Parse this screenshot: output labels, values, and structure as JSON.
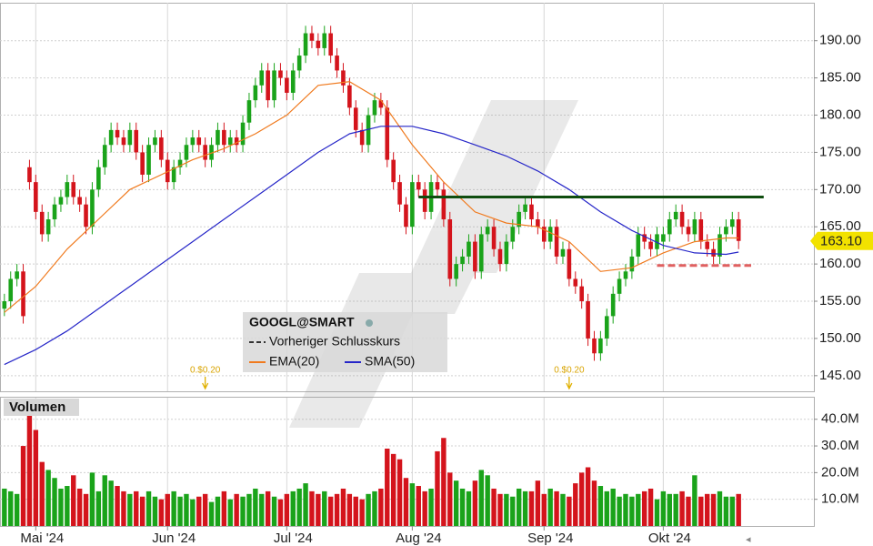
{
  "chart_data": {
    "type": "candlestick",
    "title": "GOOGL@SMART",
    "up_color": "#1aa31a",
    "down_color": "#d4141c",
    "open": [
      154,
      155,
      158,
      159,
      173,
      171,
      167,
      164,
      166,
      168,
      169,
      171,
      169,
      168,
      165,
      170,
      173,
      176,
      178,
      177,
      176,
      178,
      175,
      172,
      176,
      177,
      174,
      171,
      173,
      174,
      176,
      177,
      176,
      174,
      176,
      178,
      176,
      177,
      176,
      179,
      182,
      184,
      186,
      182,
      186,
      185,
      183,
      186,
      188,
      191,
      190,
      189,
      191,
      188,
      186,
      184,
      181,
      178,
      176,
      180,
      182,
      181,
      174,
      171,
      168,
      165,
      171,
      170,
      167,
      171,
      170,
      166,
      158,
      160,
      161,
      163,
      159,
      164,
      165,
      162,
      160,
      163,
      165,
      167,
      168,
      166,
      165,
      163,
      165,
      161,
      162,
      158,
      157,
      155,
      150,
      148,
      150,
      153,
      156,
      158,
      159,
      161,
      164,
      163,
      162,
      163,
      164,
      166,
      167,
      165,
      164,
      166,
      163,
      162,
      161,
      164,
      165,
      166
    ],
    "high": [
      156,
      159,
      160,
      160,
      174,
      172,
      168,
      167,
      169,
      170,
      172,
      172,
      170,
      169,
      171,
      174,
      177,
      179,
      179,
      178,
      179,
      179,
      176,
      177,
      178,
      178,
      175,
      174,
      175,
      177,
      178,
      178,
      177,
      177,
      179,
      179,
      178,
      178,
      180,
      183,
      185,
      187,
      187,
      187,
      187,
      186,
      187,
      189,
      192,
      192,
      191,
      192,
      192,
      189,
      187,
      185,
      182,
      179,
      181,
      183,
      183,
      182,
      175,
      172,
      169,
      172,
      172,
      171,
      172,
      172,
      171,
      167,
      161,
      162,
      164,
      164,
      165,
      166,
      166,
      163,
      164,
      166,
      168,
      169,
      169,
      167,
      166,
      166,
      166,
      163,
      163,
      159,
      158,
      156,
      151,
      151,
      154,
      157,
      159,
      160,
      162,
      165,
      165,
      164,
      165,
      165,
      167,
      168,
      168,
      166,
      167,
      167,
      164,
      163,
      165,
      166,
      167,
      167
    ],
    "low": [
      153,
      154,
      157,
      152,
      170,
      166,
      163,
      163,
      165,
      167,
      168,
      168,
      167,
      164,
      164,
      169,
      172,
      175,
      176,
      175,
      175,
      174,
      171,
      171,
      175,
      173,
      170,
      170,
      172,
      173,
      175,
      175,
      173,
      173,
      175,
      175,
      175,
      175,
      175,
      178,
      181,
      183,
      181,
      181,
      184,
      182,
      182,
      185,
      187,
      189,
      188,
      188,
      187,
      185,
      183,
      180,
      177,
      175,
      175,
      179,
      180,
      173,
      170,
      167,
      164,
      164,
      169,
      166,
      166,
      169,
      165,
      157,
      157,
      159,
      160,
      158,
      158,
      163,
      161,
      159,
      159,
      162,
      164,
      166,
      165,
      164,
      162,
      162,
      160,
      160,
      157,
      156,
      154,
      149,
      147,
      147,
      149,
      152,
      155,
      157,
      158,
      160,
      162,
      161,
      161,
      162,
      163,
      165,
      164,
      163,
      163,
      162,
      161,
      160,
      160,
      163,
      164,
      162
    ],
    "close": [
      155,
      158,
      159,
      153,
      171,
      167,
      164,
      166,
      168,
      169,
      171,
      169,
      168,
      165,
      170,
      173,
      176,
      178,
      177,
      176,
      178,
      175,
      172,
      176,
      177,
      174,
      171,
      173,
      174,
      176,
      177,
      176,
      174,
      176,
      178,
      176,
      177,
      176,
      179,
      182,
      184,
      186,
      182,
      186,
      185,
      183,
      186,
      188,
      191,
      190,
      189,
      191,
      188,
      186,
      184,
      181,
      178,
      176,
      180,
      182,
      181,
      174,
      171,
      168,
      165,
      171,
      170,
      167,
      171,
      170,
      166,
      158,
      160,
      161,
      163,
      159,
      164,
      165,
      162,
      160,
      163,
      165,
      167,
      168,
      166,
      165,
      163,
      165,
      161,
      162,
      158,
      157,
      155,
      150,
      148,
      150,
      153,
      156,
      158,
      159,
      161,
      164,
      163,
      162,
      164,
      164,
      166,
      167,
      165,
      164,
      166,
      163,
      162,
      161,
      164,
      165,
      166,
      163.1
    ],
    "ylim": [
      142.9,
      195.1
    ],
    "yticks": [
      {
        "value": 145,
        "label": "145.00"
      },
      {
        "value": 150,
        "label": "150.00"
      },
      {
        "value": 155,
        "label": "155.00"
      },
      {
        "value": 160,
        "label": "160.00"
      },
      {
        "value": 165,
        "label": "165.00"
      },
      {
        "value": 170,
        "label": "170.00"
      },
      {
        "value": 175,
        "label": "175.00"
      },
      {
        "value": 180,
        "label": "180.00"
      },
      {
        "value": 185,
        "label": "185.00"
      },
      {
        "value": 190,
        "label": "190.00"
      }
    ],
    "xlim": [
      -0.7,
      129
    ],
    "xticks": [
      {
        "value": 5,
        "label": "Mai '24"
      },
      {
        "value": 26,
        "label": "Jun '24"
      },
      {
        "value": 45,
        "label": "Jul '24"
      },
      {
        "value": 65,
        "label": "Aug '24"
      },
      {
        "value": 86,
        "label": "Sep '24"
      },
      {
        "value": 105,
        "label": "Okt '24"
      }
    ],
    "series": [
      {
        "name": "EMA(20)",
        "color": "#f07a1e",
        "x": [
          0,
          5,
          10,
          15,
          20,
          25,
          30,
          35,
          40,
          45,
          50,
          55,
          60,
          65,
          70,
          75,
          80,
          85,
          90,
          95,
          100,
          105,
          110,
          115,
          117
        ],
        "values": [
          153.5,
          157,
          162,
          166,
          170,
          172,
          174,
          175.5,
          177.5,
          180,
          184,
          184.5,
          182,
          176,
          171,
          167,
          165.5,
          165,
          163,
          159,
          159.5,
          161.5,
          163,
          163.5,
          163.5
        ]
      },
      {
        "name": "SMA(50)",
        "color": "#2626c8",
        "x": [
          0,
          5,
          10,
          15,
          20,
          25,
          30,
          35,
          40,
          45,
          50,
          55,
          60,
          65,
          70,
          75,
          80,
          85,
          90,
          95,
          100,
          105,
          110,
          115,
          117
        ],
        "values": [
          146.5,
          148.5,
          151,
          154,
          157,
          160,
          163,
          166,
          169,
          172,
          175,
          177.5,
          178.5,
          178.5,
          177.5,
          176,
          174.5,
          172.5,
          170,
          167,
          164.5,
          162.5,
          161.5,
          161.3,
          161.6
        ]
      }
    ],
    "previous_close_legend": "Vorheriger Schlusskurs",
    "last_price": {
      "value": 163.1,
      "label": "163.10"
    },
    "dividends": [
      {
        "x": 32,
        "label": "0.$0.20"
      },
      {
        "x": 90,
        "label": "0.$0.20"
      }
    ],
    "trendlines": [
      {
        "value": 169,
        "from": 66,
        "to": 121,
        "color": "#0f4d0f"
      },
      {
        "value": 159.8,
        "from": 104,
        "to": 119,
        "color": "#e06060"
      }
    ],
    "volume": {
      "title": "Volumen",
      "values": [
        14,
        13,
        12,
        30,
        47,
        36,
        24,
        21,
        18,
        14,
        15,
        19,
        14,
        12,
        20,
        13,
        19,
        17,
        15,
        13,
        12,
        13,
        11,
        13,
        11,
        10,
        12,
        13,
        11,
        12,
        10,
        11,
        12,
        9,
        11,
        13,
        10,
        12,
        11,
        12,
        14,
        12,
        13,
        11,
        10,
        12,
        13,
        14,
        16,
        13,
        12,
        13,
        11,
        12,
        14,
        12,
        11,
        10,
        12,
        13,
        14,
        29,
        27,
        25,
        18,
        16,
        15,
        13,
        14,
        28,
        33,
        20,
        17,
        14,
        13,
        17,
        21,
        19,
        14,
        12,
        12,
        11,
        14,
        13,
        13,
        17,
        12,
        14,
        13,
        12,
        11,
        16,
        20,
        22,
        17,
        15,
        13,
        14,
        11,
        12,
        11,
        12,
        13,
        14,
        10,
        13,
        12,
        12,
        13,
        11,
        19,
        11,
        12,
        12,
        13,
        11,
        11,
        12
      ],
      "ylim": [
        0,
        48.1
      ],
      "yticks": [
        {
          "value": 10,
          "label": "10.0M"
        },
        {
          "value": 20,
          "label": "20.0M"
        },
        {
          "value": 30,
          "label": "30.0M"
        },
        {
          "value": 40,
          "label": "40.0M"
        }
      ]
    }
  }
}
